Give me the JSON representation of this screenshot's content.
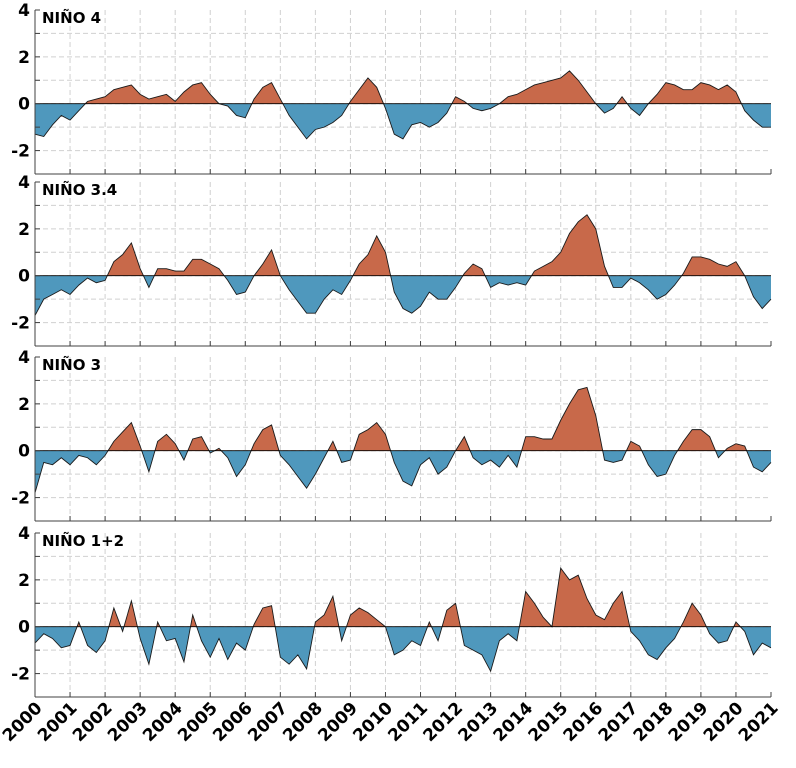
{
  "chart_data": [
    {
      "type": "area",
      "title": "NIÑO 4",
      "xlim": [
        2000,
        2021
      ],
      "ylim": [
        -3,
        4
      ],
      "yticks": [
        -2,
        0,
        2,
        4
      ],
      "grid": true,
      "positive_color": "#c8694a",
      "negative_color": "#4f98bd",
      "x": [
        2000.0,
        2000.25,
        2000.5,
        2000.75,
        2001.0,
        2001.25,
        2001.5,
        2001.75,
        2002.0,
        2002.25,
        2002.5,
        2002.75,
        2003.0,
        2003.25,
        2003.5,
        2003.75,
        2004.0,
        2004.25,
        2004.5,
        2004.75,
        2005.0,
        2005.25,
        2005.5,
        2005.75,
        2006.0,
        2006.25,
        2006.5,
        2006.75,
        2007.0,
        2007.25,
        2007.5,
        2007.75,
        2008.0,
        2008.25,
        2008.5,
        2008.75,
        2009.0,
        2009.25,
        2009.5,
        2009.75,
        2010.0,
        2010.25,
        2010.5,
        2010.75,
        2011.0,
        2011.25,
        2011.5,
        2011.75,
        2012.0,
        2012.25,
        2012.5,
        2012.75,
        2013.0,
        2013.25,
        2013.5,
        2013.75,
        2014.0,
        2014.25,
        2014.5,
        2014.75,
        2015.0,
        2015.25,
        2015.5,
        2015.75,
        2016.0,
        2016.25,
        2016.5,
        2016.75,
        2017.0,
        2017.25,
        2017.5,
        2017.75,
        2018.0,
        2018.25,
        2018.5,
        2018.75,
        2019.0,
        2019.25,
        2019.5,
        2019.75,
        2020.0,
        2020.25,
        2020.5,
        2020.75,
        2021.0
      ],
      "values": [
        -1.3,
        -1.4,
        -0.9,
        -0.5,
        -0.7,
        -0.3,
        0.1,
        0.2,
        0.3,
        0.6,
        0.7,
        0.8,
        0.4,
        0.2,
        0.3,
        0.4,
        0.1,
        0.5,
        0.8,
        0.9,
        0.4,
        0.0,
        -0.1,
        -0.5,
        -0.6,
        0.2,
        0.7,
        0.9,
        0.2,
        -0.5,
        -1.0,
        -1.5,
        -1.1,
        -1.0,
        -0.8,
        -0.5,
        0.1,
        0.6,
        1.1,
        0.7,
        -0.2,
        -1.3,
        -1.5,
        -0.9,
        -0.8,
        -1.0,
        -0.8,
        -0.4,
        0.3,
        0.1,
        -0.2,
        -0.3,
        -0.2,
        0.0,
        0.3,
        0.4,
        0.6,
        0.8,
        0.9,
        1.0,
        1.1,
        1.4,
        1.0,
        0.5,
        0.0,
        -0.4,
        -0.2,
        0.3,
        -0.2,
        -0.5,
        0.0,
        0.4,
        0.9,
        0.8,
        0.6,
        0.6,
        0.9,
        0.8,
        0.6,
        0.8,
        0.5,
        -0.3,
        -0.7,
        -1.0,
        -1.0
      ]
    },
    {
      "type": "area",
      "title": "NIÑO 3.4",
      "xlim": [
        2000,
        2021
      ],
      "ylim": [
        -3,
        4
      ],
      "yticks": [
        -2,
        0,
        2,
        4
      ],
      "grid": true,
      "positive_color": "#c8694a",
      "negative_color": "#4f98bd",
      "x": [
        2000.0,
        2000.25,
        2000.5,
        2000.75,
        2001.0,
        2001.25,
        2001.5,
        2001.75,
        2002.0,
        2002.25,
        2002.5,
        2002.75,
        2003.0,
        2003.25,
        2003.5,
        2003.75,
        2004.0,
        2004.25,
        2004.5,
        2004.75,
        2005.0,
        2005.25,
        2005.5,
        2005.75,
        2006.0,
        2006.25,
        2006.5,
        2006.75,
        2007.0,
        2007.25,
        2007.5,
        2007.75,
        2008.0,
        2008.25,
        2008.5,
        2008.75,
        2009.0,
        2009.25,
        2009.5,
        2009.75,
        2010.0,
        2010.25,
        2010.5,
        2010.75,
        2011.0,
        2011.25,
        2011.5,
        2011.75,
        2012.0,
        2012.25,
        2012.5,
        2012.75,
        2013.0,
        2013.25,
        2013.5,
        2013.75,
        2014.0,
        2014.25,
        2014.5,
        2014.75,
        2015.0,
        2015.25,
        2015.5,
        2015.75,
        2016.0,
        2016.25,
        2016.5,
        2016.75,
        2017.0,
        2017.25,
        2017.5,
        2017.75,
        2018.0,
        2018.25,
        2018.5,
        2018.75,
        2019.0,
        2019.25,
        2019.5,
        2019.75,
        2020.0,
        2020.25,
        2020.5,
        2020.75,
        2021.0
      ],
      "values": [
        -1.7,
        -1.0,
        -0.8,
        -0.6,
        -0.8,
        -0.4,
        -0.1,
        -0.3,
        -0.2,
        0.6,
        0.9,
        1.4,
        0.3,
        -0.5,
        0.3,
        0.3,
        0.2,
        0.2,
        0.7,
        0.7,
        0.5,
        0.3,
        -0.2,
        -0.8,
        -0.7,
        0.0,
        0.5,
        1.1,
        0.0,
        -0.6,
        -1.1,
        -1.6,
        -1.6,
        -1.0,
        -0.6,
        -0.8,
        -0.2,
        0.5,
        0.9,
        1.7,
        1.0,
        -0.7,
        -1.4,
        -1.6,
        -1.3,
        -0.7,
        -1.0,
        -1.0,
        -0.5,
        0.1,
        0.5,
        0.3,
        -0.5,
        -0.3,
        -0.4,
        -0.3,
        -0.4,
        0.2,
        0.4,
        0.6,
        1.0,
        1.8,
        2.3,
        2.6,
        2.0,
        0.4,
        -0.5,
        -0.5,
        -0.1,
        -0.3,
        -0.6,
        -1.0,
        -0.8,
        -0.4,
        0.1,
        0.8,
        0.8,
        0.7,
        0.5,
        0.4,
        0.6,
        0.0,
        -0.9,
        -1.4,
        -1.0
      ]
    },
    {
      "type": "area",
      "title": "NIÑO 3",
      "xlim": [
        2000,
        2021
      ],
      "ylim": [
        -3,
        4
      ],
      "yticks": [
        -2,
        0,
        2,
        4
      ],
      "grid": true,
      "positive_color": "#c8694a",
      "negative_color": "#4f98bd",
      "x": [
        2000.0,
        2000.25,
        2000.5,
        2000.75,
        2001.0,
        2001.25,
        2001.5,
        2001.75,
        2002.0,
        2002.25,
        2002.5,
        2002.75,
        2003.0,
        2003.25,
        2003.5,
        2003.75,
        2004.0,
        2004.25,
        2004.5,
        2004.75,
        2005.0,
        2005.25,
        2005.5,
        2005.75,
        2006.0,
        2006.25,
        2006.5,
        2006.75,
        2007.0,
        2007.25,
        2007.5,
        2007.75,
        2008.0,
        2008.25,
        2008.5,
        2008.75,
        2009.0,
        2009.25,
        2009.5,
        2009.75,
        2010.0,
        2010.25,
        2010.5,
        2010.75,
        2011.0,
        2011.25,
        2011.5,
        2011.75,
        2012.0,
        2012.25,
        2012.5,
        2012.75,
        2013.0,
        2013.25,
        2013.5,
        2013.75,
        2014.0,
        2014.25,
        2014.5,
        2014.75,
        2015.0,
        2015.25,
        2015.5,
        2015.75,
        2016.0,
        2016.25,
        2016.5,
        2016.75,
        2017.0,
        2017.25,
        2017.5,
        2017.75,
        2018.0,
        2018.25,
        2018.5,
        2018.75,
        2019.0,
        2019.25,
        2019.5,
        2019.75,
        2020.0,
        2020.25,
        2020.5,
        2020.75,
        2021.0
      ],
      "values": [
        -1.8,
        -0.5,
        -0.6,
        -0.3,
        -0.6,
        -0.2,
        -0.3,
        -0.6,
        -0.2,
        0.4,
        0.8,
        1.2,
        0.2,
        -0.9,
        0.4,
        0.7,
        0.3,
        -0.4,
        0.5,
        0.6,
        -0.1,
        0.1,
        -0.3,
        -1.1,
        -0.6,
        0.3,
        0.9,
        1.1,
        -0.2,
        -0.6,
        -1.1,
        -1.6,
        -1.0,
        -0.3,
        0.4,
        -0.5,
        -0.4,
        0.7,
        0.9,
        1.2,
        0.7,
        -0.5,
        -1.3,
        -1.5,
        -0.6,
        -0.3,
        -1.0,
        -0.7,
        0.0,
        0.6,
        -0.3,
        -0.6,
        -0.4,
        -0.7,
        -0.2,
        -0.7,
        0.6,
        0.6,
        0.5,
        0.5,
        1.3,
        2.0,
        2.6,
        2.7,
        1.5,
        -0.4,
        -0.5,
        -0.4,
        0.4,
        0.2,
        -0.6,
        -1.1,
        -1.0,
        -0.2,
        0.4,
        0.9,
        0.9,
        0.6,
        -0.3,
        0.1,
        0.3,
        0.2,
        -0.7,
        -0.9,
        -0.5
      ]
    },
    {
      "type": "area",
      "title": "NIÑO 1+2",
      "xlim": [
        2000,
        2021
      ],
      "ylim": [
        -3,
        4
      ],
      "yticks": [
        -2,
        0,
        2,
        4
      ],
      "xticks": [
        "2000",
        "2001",
        "2002",
        "2003",
        "2004",
        "2005",
        "2006",
        "2007",
        "2008",
        "2009",
        "2010",
        "2011",
        "2012",
        "2013",
        "2014",
        "2015",
        "2016",
        "2017",
        "2018",
        "2019",
        "2020",
        "2021"
      ],
      "grid": true,
      "positive_color": "#c8694a",
      "negative_color": "#4f98bd",
      "x": [
        2000.0,
        2000.25,
        2000.5,
        2000.75,
        2001.0,
        2001.25,
        2001.5,
        2001.75,
        2002.0,
        2002.25,
        2002.5,
        2002.75,
        2003.0,
        2003.25,
        2003.5,
        2003.75,
        2004.0,
        2004.25,
        2004.5,
        2004.75,
        2005.0,
        2005.25,
        2005.5,
        2005.75,
        2006.0,
        2006.25,
        2006.5,
        2006.75,
        2007.0,
        2007.25,
        2007.5,
        2007.75,
        2008.0,
        2008.25,
        2008.5,
        2008.75,
        2009.0,
        2009.25,
        2009.5,
        2009.75,
        2010.0,
        2010.25,
        2010.5,
        2010.75,
        2011.0,
        2011.25,
        2011.5,
        2011.75,
        2012.0,
        2012.25,
        2012.5,
        2012.75,
        2013.0,
        2013.25,
        2013.5,
        2013.75,
        2014.0,
        2014.25,
        2014.5,
        2014.75,
        2015.0,
        2015.25,
        2015.5,
        2015.75,
        2016.0,
        2016.25,
        2016.5,
        2016.75,
        2017.0,
        2017.25,
        2017.5,
        2017.75,
        2018.0,
        2018.25,
        2018.5,
        2018.75,
        2019.0,
        2019.25,
        2019.5,
        2019.75,
        2020.0,
        2020.25,
        2020.5,
        2020.75,
        2021.0
      ],
      "values": [
        -0.7,
        -0.3,
        -0.5,
        -0.9,
        -0.8,
        0.2,
        -0.8,
        -1.1,
        -0.6,
        0.8,
        -0.2,
        1.1,
        -0.5,
        -1.6,
        0.2,
        -0.6,
        -0.5,
        -1.5,
        0.5,
        -0.6,
        -1.3,
        -0.5,
        -1.4,
        -0.7,
        -1.0,
        0.1,
        0.8,
        0.9,
        -1.3,
        -1.6,
        -1.2,
        -1.8,
        0.2,
        0.5,
        1.3,
        -0.6,
        0.5,
        0.8,
        0.6,
        0.3,
        0.0,
        -1.2,
        -1.0,
        -0.6,
        -0.8,
        0.2,
        -0.6,
        0.7,
        1.0,
        -0.8,
        -1.0,
        -1.2,
        -1.9,
        -0.6,
        -0.3,
        -0.6,
        1.5,
        1.0,
        0.4,
        0.0,
        2.5,
        2.0,
        2.2,
        1.2,
        0.5,
        0.3,
        1.0,
        1.5,
        -0.2,
        -0.6,
        -1.2,
        -1.4,
        -0.9,
        -0.5,
        0.2,
        1.0,
        0.5,
        -0.3,
        -0.7,
        -0.6,
        0.2,
        -0.2,
        -1.2,
        -0.7,
        -0.9
      ]
    }
  ]
}
